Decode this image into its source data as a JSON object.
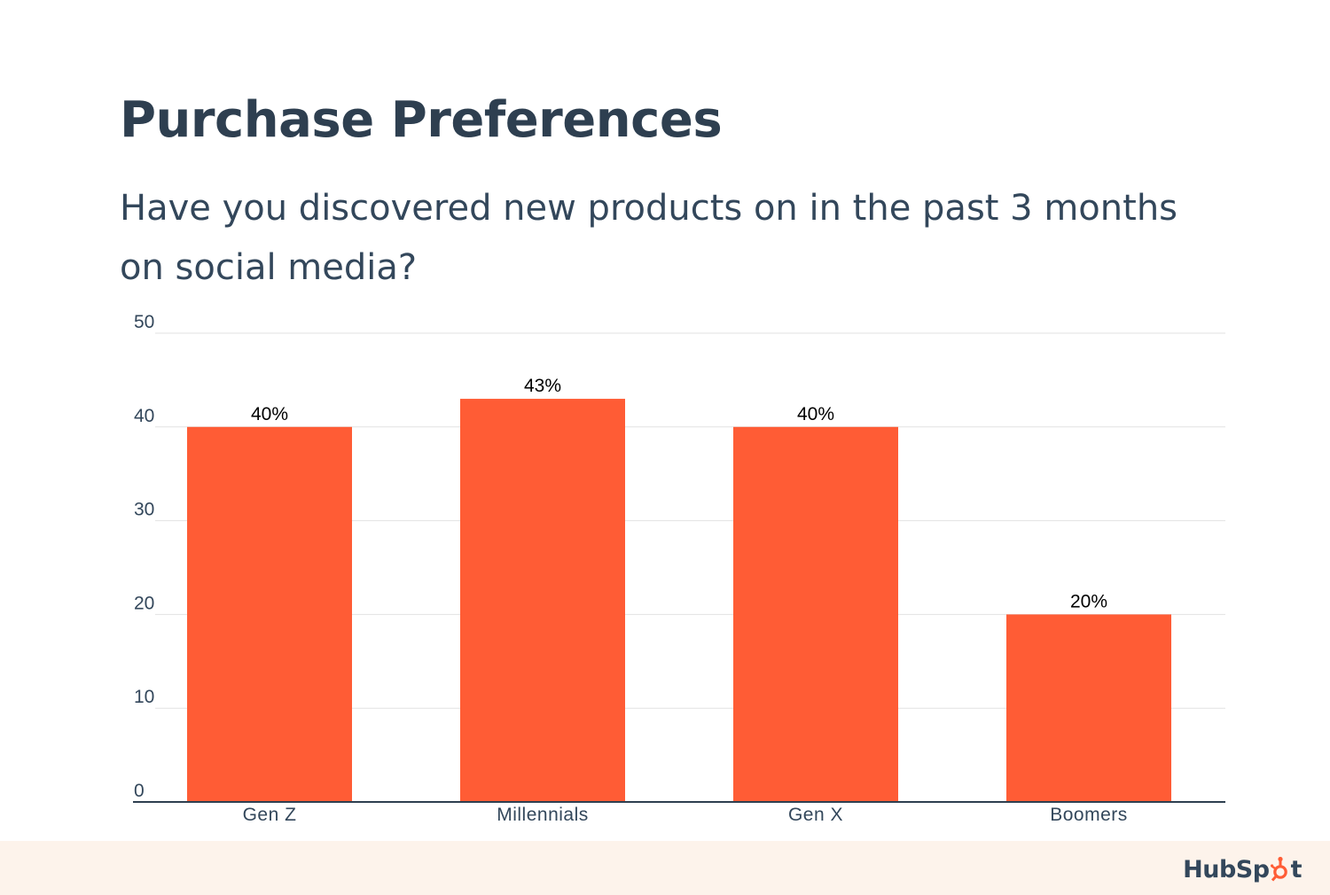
{
  "colors": {
    "bar": "#ff5c35",
    "title": "#2e3f50",
    "text": "#33475b",
    "grid": "#e2e2e2",
    "axis": "#2e3f50",
    "footer_bg": "#fdf3eb"
  },
  "brand": {
    "logo_text": "HubSpot"
  },
  "chart_data": {
    "type": "bar",
    "title": "Purchase Preferences",
    "subtitle": "Have you discovered new products on in the past 3 months on social media?",
    "categories": [
      "Gen Z",
      "Millennials",
      "Gen X",
      "Boomers"
    ],
    "values": [
      40,
      43,
      40,
      20
    ],
    "data_labels": [
      "40%",
      "43%",
      "40%",
      "20%"
    ],
    "yticks": [
      0,
      10,
      20,
      30,
      40,
      50
    ],
    "ylim": [
      0,
      50
    ],
    "xlabel": "",
    "ylabel": "",
    "grid": true,
    "legend": "none"
  }
}
